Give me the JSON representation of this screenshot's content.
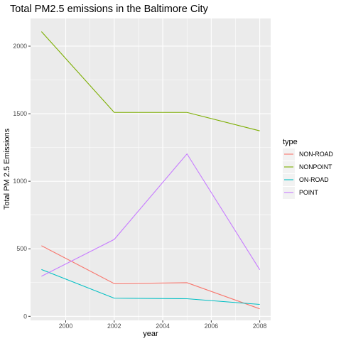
{
  "chart_data": {
    "type": "line",
    "title": "Total PM2.5 emissions in the Baltimore City",
    "xlabel": "year",
    "ylabel": "Total PM 2.5 Emissions",
    "x": [
      1999,
      2002,
      2005,
      2008
    ],
    "xlim": [
      1998.55,
      2008.45
    ],
    "ylim": [
      -30,
      2205
    ],
    "xticks": [
      2000,
      2002,
      2004,
      2006,
      2008
    ],
    "yticks": [
      0,
      500,
      1000,
      1500,
      2000
    ],
    "grid": true,
    "legend": {
      "title": "type",
      "placement": "right"
    },
    "series": [
      {
        "name": "NON-ROAD",
        "color": "#F8766D",
        "values": [
          522.9,
          242.4,
          248.9,
          55.8
        ]
      },
      {
        "name": "NONPOINT",
        "color": "#7CAE00",
        "values": [
          2107.6,
          1509.5,
          1509.5,
          1373.2
        ]
      },
      {
        "name": "ON-ROAD",
        "color": "#00BFC4",
        "values": [
          346.8,
          134.3,
          130.4,
          88.3
        ]
      },
      {
        "name": "POINT",
        "color": "#C77CFF",
        "values": [
          296.8,
          569.3,
          1202.5,
          344.98
        ]
      }
    ]
  }
}
